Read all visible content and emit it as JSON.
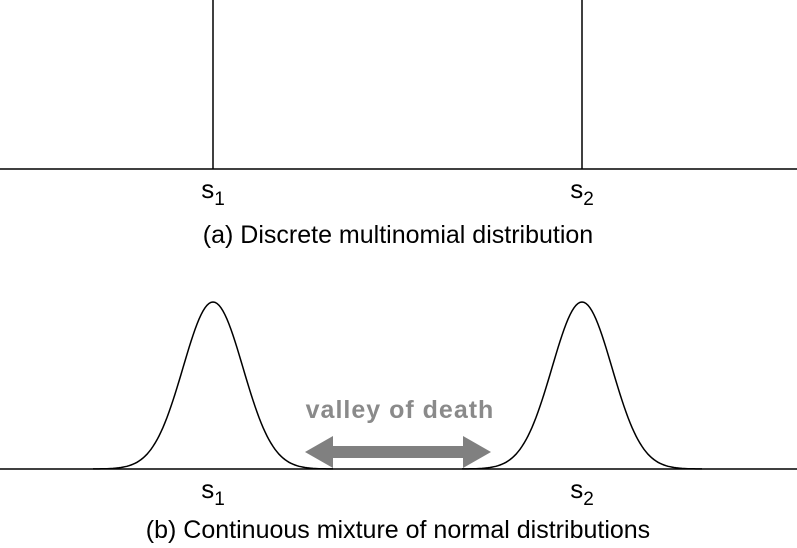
{
  "panel_a": {
    "caption": "(a) Discrete multinomial distribution",
    "ticks": [
      {
        "base": "s",
        "sub": "1"
      },
      {
        "base": "s",
        "sub": "2"
      }
    ]
  },
  "panel_b": {
    "caption": "(b) Continuous mixture of normal distributions",
    "ticks": [
      {
        "base": "s",
        "sub": "1"
      },
      {
        "base": "s",
        "sub": "2"
      }
    ],
    "annotation": "valley of death"
  },
  "colors": {
    "line": "#000000",
    "arrow": "#808080",
    "annotation": "#8a8a8a"
  }
}
